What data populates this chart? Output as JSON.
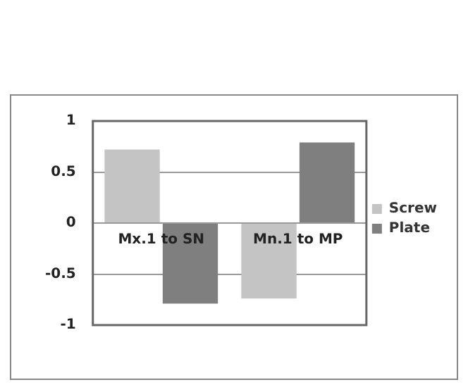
{
  "chart_data": {
    "type": "bar",
    "categories": [
      "Mx.1 to SN",
      "Mn.1 to MP"
    ],
    "series": [
      {
        "name": "Screw",
        "color": "#c4c4c4",
        "values": [
          0.72,
          -0.74
        ]
      },
      {
        "name": "Plate",
        "color": "#7f7f7f",
        "values": [
          -0.79,
          0.79
        ]
      }
    ],
    "ylim": [
      -1,
      1
    ],
    "yticks": [
      -1,
      -0.5,
      0,
      0.5,
      1
    ],
    "grid": "y",
    "legend": "right"
  }
}
